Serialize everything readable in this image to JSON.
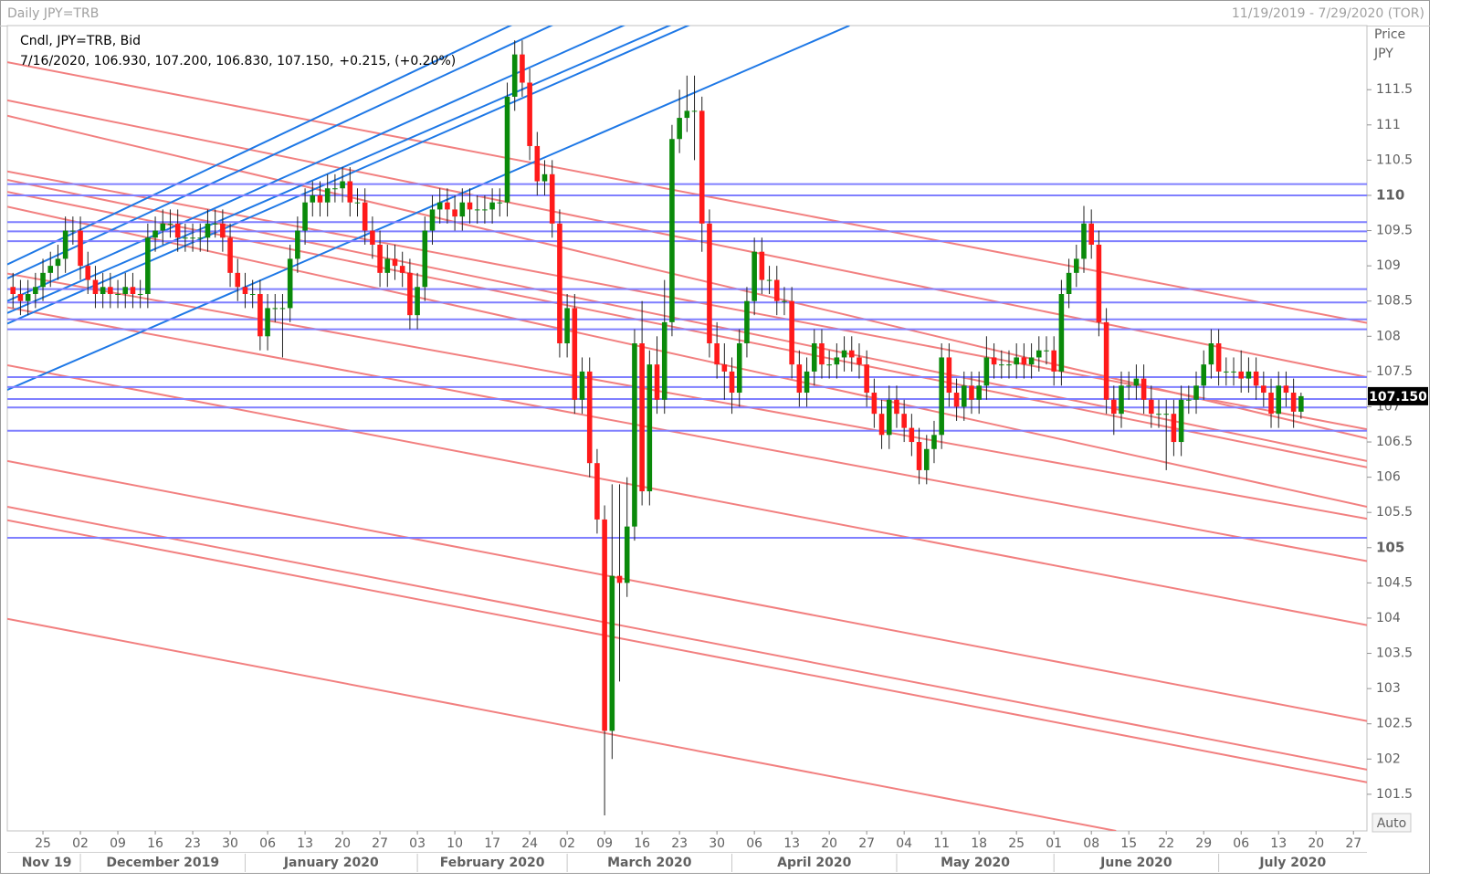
{
  "chart_data": {
    "type": "candlestick",
    "title": "Daily JPY=TRB",
    "date_range": "11/19/2019 - 7/29/2020 (TOR)",
    "legend_title": "Cndl, JPY=TRB, Bid",
    "legend_values": "7/16/2020, 106.930, 107.200, 106.830, 107.150,",
    "legend_change": "+0.215, (+0.20%)",
    "legend_change_color": "#1f1fd0",
    "y_axis_label": "Price",
    "y_axis_unit": "JPY",
    "auto_button": "Auto",
    "up_color": "#0a8a0a",
    "down_color": "#ff1a1a",
    "open": [
      108.7,
      108.6,
      108.5,
      108.6,
      108.7,
      108.9,
      109.0,
      109.1,
      109.5,
      109.5,
      109.0,
      108.8,
      108.6,
      108.7,
      108.6,
      108.6,
      108.7,
      108.6,
      108.6,
      109.4,
      109.5,
      109.6,
      109.6,
      109.4,
      109.4,
      109.4,
      109.4,
      109.6,
      109.6,
      109.4,
      108.9,
      108.7,
      108.6,
      108.6,
      108.0,
      108.4,
      108.4,
      108.4,
      109.1,
      109.5,
      109.9,
      110.0,
      109.9,
      110.1,
      110.1,
      110.2,
      109.9,
      109.9,
      109.5,
      109.3,
      108.9,
      109.1,
      109.0,
      108.9,
      108.3,
      108.7,
      109.5,
      109.8,
      109.9,
      109.8,
      109.7,
      109.9,
      109.8,
      109.8,
      109.8,
      109.9,
      109.9,
      111.4,
      112.0,
      111.6,
      110.7,
      110.2,
      110.3,
      109.6,
      107.9,
      108.4,
      107.1,
      107.5,
      106.2,
      105.4,
      102.4,
      104.6,
      104.5,
      105.3,
      107.9,
      105.8,
      107.6,
      107.1,
      108.2,
      110.8,
      111.1,
      111.2,
      111.2,
      109.6,
      107.9,
      107.6,
      107.5,
      107.2,
      107.9,
      108.5,
      109.2,
      108.8,
      108.8,
      108.5,
      108.5,
      107.6,
      107.2,
      107.5,
      107.9,
      107.6,
      107.6,
      107.7,
      107.8,
      107.7,
      107.6,
      107.2,
      106.9,
      106.6,
      107.1,
      106.9,
      106.7,
      106.5,
      106.1,
      106.4,
      106.6,
      107.7,
      107.2,
      107.0,
      107.3,
      107.1,
      107.3,
      107.7,
      107.6,
      107.6,
      107.6,
      107.7,
      107.6,
      107.7,
      107.8,
      107.8,
      107.5,
      108.6,
      108.9,
      109.1,
      109.6,
      109.3,
      108.2,
      107.1,
      106.9,
      107.3,
      107.3,
      107.4,
      107.1,
      106.9,
      106.9,
      106.9,
      106.5,
      107.1,
      107.1,
      107.3,
      107.6,
      107.9,
      107.5,
      107.5,
      107.5,
      107.4,
      107.5,
      107.3,
      107.2,
      106.9,
      107.3,
      107.2,
      106.93
    ],
    "high": [
      108.9,
      108.8,
      108.8,
      108.9,
      109.1,
      109.2,
      109.3,
      109.7,
      109.7,
      109.7,
      109.2,
      109.0,
      108.9,
      108.9,
      108.8,
      108.9,
      108.9,
      108.8,
      109.6,
      109.7,
      109.8,
      109.8,
      109.8,
      109.6,
      109.6,
      109.6,
      109.8,
      109.8,
      109.8,
      109.6,
      109.1,
      108.9,
      108.8,
      108.8,
      108.6,
      108.6,
      108.6,
      109.3,
      109.7,
      110.1,
      110.2,
      110.2,
      110.3,
      110.3,
      110.4,
      110.4,
      110.1,
      110.1,
      109.7,
      109.5,
      109.3,
      109.3,
      109.2,
      109.1,
      108.9,
      109.7,
      110.0,
      110.1,
      110.1,
      110.0,
      110.1,
      110.1,
      110.0,
      110.0,
      110.1,
      110.1,
      111.6,
      112.2,
      112.2,
      111.8,
      110.9,
      110.5,
      110.5,
      109.8,
      108.6,
      108.6,
      107.7,
      107.7,
      106.4,
      105.6,
      105.9,
      105.9,
      106.0,
      108.1,
      108.5,
      107.8,
      108.0,
      108.8,
      111.0,
      111.5,
      111.7,
      111.7,
      111.4,
      109.8,
      108.2,
      107.9,
      107.7,
      108.1,
      108.7,
      109.4,
      109.4,
      109.0,
      109.0,
      108.7,
      108.7,
      107.8,
      107.7,
      108.1,
      108.1,
      107.8,
      107.9,
      108.0,
      108.0,
      107.9,
      107.8,
      107.4,
      107.1,
      107.3,
      107.3,
      107.1,
      106.9,
      106.7,
      106.6,
      106.8,
      107.9,
      107.9,
      107.4,
      107.5,
      107.5,
      107.5,
      108.0,
      107.9,
      107.8,
      107.8,
      107.9,
      107.9,
      107.9,
      108.0,
      108.0,
      108.0,
      108.8,
      109.1,
      109.3,
      109.85,
      109.8,
      109.5,
      108.4,
      107.3,
      107.5,
      107.5,
      107.6,
      107.6,
      107.3,
      107.1,
      107.1,
      107.1,
      107.3,
      107.3,
      107.5,
      107.8,
      108.1,
      108.1,
      107.7,
      107.7,
      107.8,
      107.7,
      107.7,
      107.5,
      107.4,
      107.5,
      107.5,
      107.4,
      107.2
    ],
    "low": [
      108.4,
      108.3,
      108.3,
      108.4,
      108.5,
      108.7,
      108.8,
      108.9,
      109.3,
      108.8,
      108.6,
      108.4,
      108.4,
      108.4,
      108.4,
      108.4,
      108.4,
      108.4,
      108.4,
      109.2,
      109.3,
      109.4,
      109.2,
      109.2,
      109.2,
      109.2,
      109.2,
      109.4,
      109.2,
      108.7,
      108.5,
      108.4,
      108.4,
      107.8,
      107.8,
      108.2,
      107.7,
      108.2,
      108.9,
      109.3,
      109.7,
      109.7,
      109.7,
      109.9,
      109.9,
      109.7,
      109.7,
      109.3,
      109.1,
      108.7,
      108.7,
      108.8,
      108.7,
      108.1,
      108.1,
      108.5,
      109.3,
      109.6,
      109.6,
      109.5,
      109.5,
      109.6,
      109.6,
      109.6,
      109.6,
      109.7,
      109.7,
      111.2,
      111.4,
      110.5,
      110.0,
      110.0,
      109.4,
      107.7,
      107.7,
      106.9,
      106.9,
      106.0,
      105.2,
      101.2,
      102.0,
      103.1,
      104.3,
      105.1,
      105.6,
      105.6,
      106.9,
      106.9,
      108.0,
      110.6,
      110.9,
      110.5,
      109.2,
      107.7,
      107.4,
      107.1,
      106.9,
      107.0,
      107.7,
      108.3,
      108.6,
      108.6,
      108.3,
      108.3,
      107.4,
      107.0,
      107.0,
      107.3,
      107.4,
      107.4,
      107.4,
      107.5,
      107.5,
      107.4,
      107.0,
      106.7,
      106.4,
      106.4,
      106.7,
      106.5,
      106.3,
      105.9,
      105.9,
      106.2,
      106.4,
      107.0,
      106.8,
      106.8,
      106.9,
      106.9,
      107.1,
      107.4,
      107.4,
      107.4,
      107.4,
      107.4,
      107.4,
      107.5,
      107.6,
      107.3,
      107.3,
      108.4,
      108.7,
      108.9,
      109.1,
      108.0,
      106.9,
      106.6,
      106.7,
      107.1,
      107.1,
      106.9,
      106.7,
      106.7,
      106.1,
      106.3,
      106.3,
      106.9,
      106.9,
      107.1,
      107.4,
      107.3,
      107.3,
      107.3,
      107.2,
      107.2,
      107.1,
      107.0,
      106.7,
      106.7,
      107.0,
      106.7,
      106.83
    ],
    "close": [
      108.6,
      108.5,
      108.6,
      108.7,
      108.9,
      109.0,
      109.1,
      109.5,
      109.5,
      109.0,
      108.8,
      108.6,
      108.7,
      108.6,
      108.6,
      108.7,
      108.6,
      108.6,
      109.4,
      109.5,
      109.6,
      109.6,
      109.4,
      109.4,
      109.4,
      109.4,
      109.6,
      109.6,
      109.4,
      108.9,
      108.7,
      108.6,
      108.6,
      108.0,
      108.4,
      108.4,
      108.4,
      109.1,
      109.5,
      109.9,
      110.0,
      109.9,
      110.1,
      110.1,
      110.2,
      109.9,
      109.9,
      109.5,
      109.3,
      108.9,
      109.1,
      109.0,
      108.9,
      108.3,
      108.7,
      109.5,
      109.8,
      109.9,
      109.8,
      109.7,
      109.9,
      109.8,
      109.8,
      109.8,
      109.9,
      109.9,
      111.4,
      112.0,
      111.6,
      110.7,
      110.2,
      110.3,
      109.6,
      107.9,
      108.4,
      107.1,
      107.5,
      106.2,
      105.4,
      102.4,
      104.6,
      104.5,
      105.3,
      107.9,
      105.8,
      107.6,
      107.1,
      108.2,
      110.8,
      111.1,
      111.2,
      111.2,
      109.6,
      107.9,
      107.6,
      107.5,
      107.2,
      107.9,
      108.5,
      109.2,
      108.8,
      108.8,
      108.5,
      108.5,
      107.6,
      107.2,
      107.5,
      107.9,
      107.6,
      107.6,
      107.7,
      107.8,
      107.7,
      107.6,
      107.2,
      106.9,
      106.6,
      107.1,
      106.9,
      106.7,
      106.5,
      106.1,
      106.4,
      106.6,
      107.7,
      107.2,
      107.0,
      107.3,
      107.1,
      107.3,
      107.7,
      107.6,
      107.6,
      107.6,
      107.7,
      107.6,
      107.7,
      107.8,
      107.8,
      107.5,
      108.6,
      108.9,
      109.1,
      109.6,
      109.3,
      108.2,
      107.1,
      106.9,
      107.3,
      107.3,
      107.4,
      107.1,
      106.9,
      106.9,
      106.9,
      106.5,
      107.1,
      107.1,
      107.3,
      107.6,
      107.9,
      107.5,
      107.5,
      107.5,
      107.4,
      107.5,
      107.3,
      107.2,
      106.9,
      107.3,
      107.2,
      106.93,
      107.15
    ],
    "last_price": {
      "value": 107.15,
      "label": "107.150"
    },
    "xlim": [
      -0.76,
      180.8
    ],
    "ylim": [
      100.98,
      112.41
    ],
    "yticks": [
      101.5,
      102,
      102.5,
      103,
      103.5,
      104,
      104.5,
      105,
      105.5,
      106,
      106.5,
      107,
      107.5,
      108,
      108.5,
      109,
      109.5,
      110,
      110.5,
      111,
      111.5
    ],
    "xticks": [
      {
        "value": 4,
        "label": "25"
      },
      {
        "value": 9,
        "label": "02"
      },
      {
        "value": 14,
        "label": "09"
      },
      {
        "value": 19,
        "label": "16"
      },
      {
        "value": 24,
        "label": "23"
      },
      {
        "value": 29,
        "label": "30"
      },
      {
        "value": 34,
        "label": "06"
      },
      {
        "value": 39,
        "label": "13"
      },
      {
        "value": 44,
        "label": "20"
      },
      {
        "value": 49,
        "label": "27"
      },
      {
        "value": 54,
        "label": "03"
      },
      {
        "value": 59,
        "label": "10"
      },
      {
        "value": 64,
        "label": "17"
      },
      {
        "value": 69,
        "label": "24"
      },
      {
        "value": 74,
        "label": "02"
      },
      {
        "value": 79,
        "label": "09"
      },
      {
        "value": 84,
        "label": "16"
      },
      {
        "value": 89,
        "label": "23"
      },
      {
        "value": 94,
        "label": "30"
      },
      {
        "value": 99,
        "label": "06"
      },
      {
        "value": 104,
        "label": "13"
      },
      {
        "value": 109,
        "label": "20"
      },
      {
        "value": 114,
        "label": "27"
      },
      {
        "value": 119,
        "label": "04"
      },
      {
        "value": 124,
        "label": "11"
      },
      {
        "value": 129,
        "label": "18"
      },
      {
        "value": 134,
        "label": "25"
      },
      {
        "value": 139,
        "label": "01"
      },
      {
        "value": 144,
        "label": "08"
      },
      {
        "value": 149,
        "label": "15"
      },
      {
        "value": 154,
        "label": "22"
      },
      {
        "value": 159,
        "label": "29"
      },
      {
        "value": 164,
        "label": "06"
      },
      {
        "value": 169,
        "label": "13"
      },
      {
        "value": 174,
        "label": "20"
      },
      {
        "value": 179,
        "label": "27"
      }
    ],
    "months": [
      {
        "value": 0,
        "label": "Nov 19"
      },
      {
        "value": 9,
        "label": "December 2019"
      },
      {
        "value": 31,
        "label": "January 2020"
      },
      {
        "value": 54,
        "label": "February 2020"
      },
      {
        "value": 74,
        "label": "March 2020"
      },
      {
        "value": 96,
        "label": "April 2020"
      },
      {
        "value": 118,
        "label": "May 2020"
      },
      {
        "value": 139,
        "label": "June 2020"
      },
      {
        "value": 161,
        "label": "July 2020"
      }
    ],
    "hlines": {
      "color": "#7f7fff",
      "values": [
        110.16,
        110,
        109.62,
        109.49,
        109.35,
        108.67,
        108.48,
        108.24,
        108.1,
        107.42,
        107.28,
        107.11,
        106.99,
        106.66,
        105.14
      ]
    },
    "trendlines": [
      {
        "color": "#f28080",
        "lines": [
          {
            "x": [
              -0.76,
              180.8
            ],
            "y": [
              111.89,
              108.19
            ]
          },
          {
            "x": [
              -0.76,
              180.8
            ],
            "y": [
              111.35,
              107.42
            ]
          },
          {
            "x": [
              -0.76,
              180.8
            ],
            "y": [
              111.13,
              106.55
            ]
          },
          {
            "x": [
              -0.76,
              180.8
            ],
            "y": [
              110.34,
              106.68
            ]
          },
          {
            "x": [
              -0.76,
              180.8
            ],
            "y": [
              110.22,
              106.23
            ]
          },
          {
            "x": [
              -0.76,
              180.8
            ],
            "y": [
              110.05,
              106.14
            ]
          },
          {
            "x": [
              -0.76,
              180.8
            ],
            "y": [
              109.84,
              105.58
            ]
          },
          {
            "x": [
              -0.76,
              180.8
            ],
            "y": [
              108.89,
              105.41
            ]
          },
          {
            "x": [
              -0.76,
              180.8
            ],
            "y": [
              108.41,
              104.81
            ]
          },
          {
            "x": [
              -0.76,
              180.8
            ],
            "y": [
              107.59,
              103.9
            ]
          },
          {
            "x": [
              -0.76,
              180.8
            ],
            "y": [
              106.23,
              102.54
            ]
          },
          {
            "x": [
              -0.76,
              180.8
            ],
            "y": [
              105.58,
              101.85
            ]
          },
          {
            "x": [
              -0.76,
              180.8
            ],
            "y": [
              105.39,
              101.67
            ]
          },
          {
            "x": [
              -0.76,
              147.3
            ],
            "y": [
              103.99,
              100.98
            ]
          }
        ]
      },
      {
        "color": "#1e78e6",
        "lines": [
          {
            "x": [
              -0.76,
              68.4
            ],
            "y": [
              109.02,
              112.51
            ]
          },
          {
            "x": [
              -0.76,
              73.9
            ],
            "y": [
              108.82,
              112.51
            ]
          },
          {
            "x": [
              -0.76,
              83.6
            ],
            "y": [
              108.5,
              112.51
            ]
          },
          {
            "x": [
              -0.76,
              88.5
            ],
            "y": [
              108.33,
              112.45
            ]
          },
          {
            "x": [
              -0.76,
              91.0
            ],
            "y": [
              108.18,
              112.45
            ]
          },
          {
            "x": [
              -0.76,
              111.7
            ],
            "y": [
              107.24,
              112.41
            ]
          }
        ]
      }
    ]
  }
}
